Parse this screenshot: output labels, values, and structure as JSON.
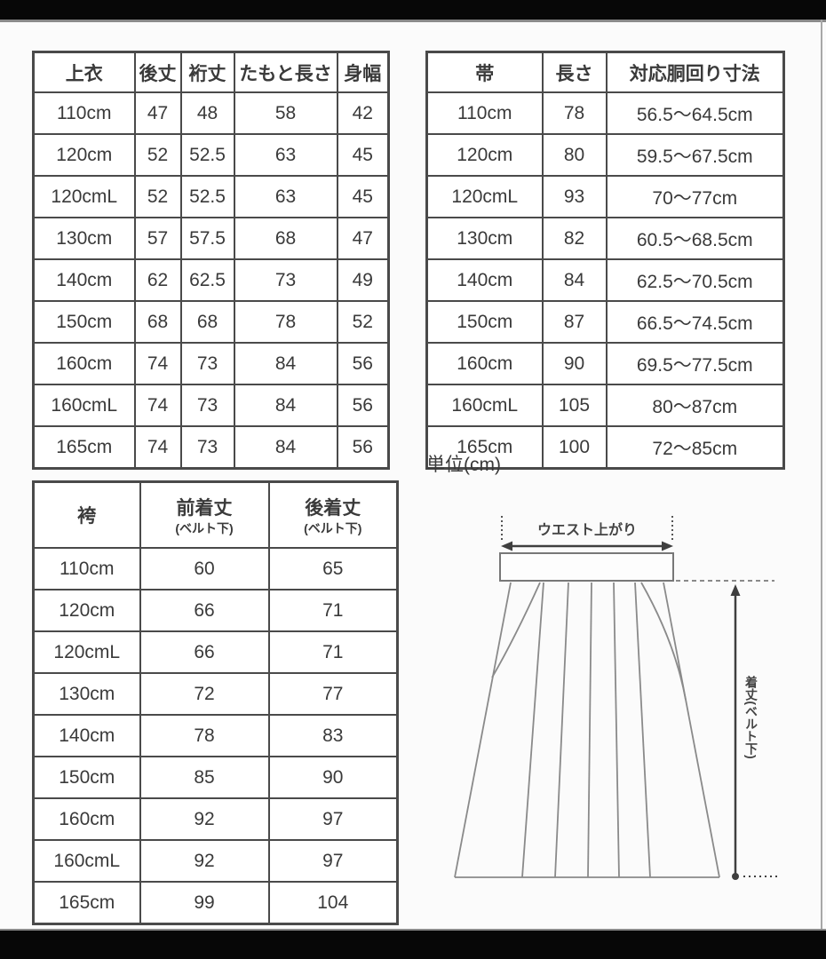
{
  "page": {
    "unit_note": "単位(cm)"
  },
  "colors": {
    "table_border": "#4a4a4a",
    "text": "#3a3a3a",
    "diagram_line": "#8a8a8a",
    "diagram_arrow": "#3f3f3f",
    "letterbox": "#070707",
    "background": "#fbfbfb"
  },
  "tables": {
    "jacket": {
      "headers": [
        {
          "label": "上衣"
        },
        {
          "label": "後丈"
        },
        {
          "label": "裄丈"
        },
        {
          "label": "たもと長さ"
        },
        {
          "label": "身幅"
        }
      ],
      "rows": [
        [
          "110cm",
          "47",
          "48",
          "58",
          "42"
        ],
        [
          "120cm",
          "52",
          "52.5",
          "63",
          "45"
        ],
        [
          "120cmL",
          "52",
          "52.5",
          "63",
          "45"
        ],
        [
          "130cm",
          "57",
          "57.5",
          "68",
          "47"
        ],
        [
          "140cm",
          "62",
          "62.5",
          "73",
          "49"
        ],
        [
          "150cm",
          "68",
          "68",
          "78",
          "52"
        ],
        [
          "160cm",
          "74",
          "73",
          "84",
          "56"
        ],
        [
          "160cmL",
          "74",
          "73",
          "84",
          "56"
        ],
        [
          "165cm",
          "74",
          "73",
          "84",
          "56"
        ]
      ]
    },
    "obi": {
      "headers": [
        {
          "label": "帯"
        },
        {
          "label": "長さ"
        },
        {
          "label": "対応胴回り寸法"
        }
      ],
      "rows": [
        [
          "110cm",
          "78",
          "56.5〜64.5cm"
        ],
        [
          "120cm",
          "80",
          "59.5〜67.5cm"
        ],
        [
          "120cmL",
          "93",
          "70〜77cm"
        ],
        [
          "130cm",
          "82",
          "60.5〜68.5cm"
        ],
        [
          "140cm",
          "84",
          "62.5〜70.5cm"
        ],
        [
          "150cm",
          "87",
          "66.5〜74.5cm"
        ],
        [
          "160cm",
          "90",
          "69.5〜77.5cm"
        ],
        [
          "160cmL",
          "105",
          "80〜87cm"
        ],
        [
          "165cm",
          "100",
          "72〜85cm"
        ]
      ]
    },
    "hakama": {
      "headers": [
        {
          "label": "袴"
        },
        {
          "label": "前着丈",
          "sub": "(ベルト下)"
        },
        {
          "label": "後着丈",
          "sub": "(ベルト下)"
        }
      ],
      "rows": [
        [
          "110cm",
          "60",
          "65"
        ],
        [
          "120cm",
          "66",
          "71"
        ],
        [
          "120cmL",
          "66",
          "71"
        ],
        [
          "130cm",
          "72",
          "77"
        ],
        [
          "140cm",
          "78",
          "83"
        ],
        [
          "150cm",
          "85",
          "90"
        ],
        [
          "160cm",
          "92",
          "97"
        ],
        [
          "160cmL",
          "92",
          "97"
        ],
        [
          "165cm",
          "99",
          "104"
        ]
      ]
    }
  },
  "diagram": {
    "waist_label": "ウエスト上がり",
    "length_label": "着丈(ベルト下)"
  }
}
